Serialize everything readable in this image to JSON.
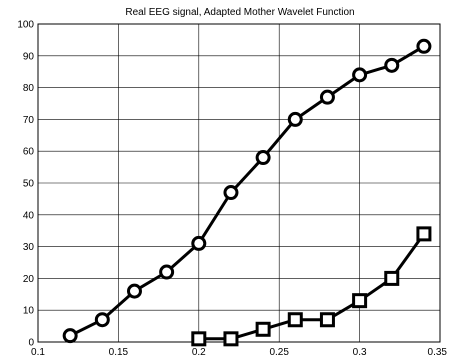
{
  "chart_data": {
    "type": "line",
    "title": "Real EEG signal, Adapted Mother Wavelet Function",
    "xlabel": "",
    "ylabel": "",
    "xlim": [
      0.1,
      0.35
    ],
    "ylim": [
      0,
      100
    ],
    "grid": true,
    "legend": "none",
    "x_ticks": [
      {
        "value": 0.1,
        "label": "0.1"
      },
      {
        "value": 0.15,
        "label": "0.15"
      },
      {
        "value": 0.2,
        "label": "0.2"
      },
      {
        "value": 0.25,
        "label": "0.25"
      },
      {
        "value": 0.3,
        "label": "0.3"
      },
      {
        "value": 0.35,
        "label": "0.35"
      }
    ],
    "y_ticks": [
      {
        "value": 0,
        "label": "0"
      },
      {
        "value": 10,
        "label": "10"
      },
      {
        "value": 20,
        "label": "20"
      },
      {
        "value": 30,
        "label": "30"
      },
      {
        "value": 40,
        "label": "40"
      },
      {
        "value": 50,
        "label": "50"
      },
      {
        "value": 60,
        "label": "60"
      },
      {
        "value": 70,
        "label": "70"
      },
      {
        "value": 80,
        "label": "80"
      },
      {
        "value": 90,
        "label": "90"
      },
      {
        "value": 100,
        "label": "100"
      }
    ],
    "series": [
      {
        "marker": "circle",
        "color": "#000000",
        "x": [
          0.12,
          0.14,
          0.16,
          0.18,
          0.2,
          0.22,
          0.24,
          0.26,
          0.28,
          0.3,
          0.32,
          0.34
        ],
        "y": [
          2,
          7,
          16,
          22,
          31,
          47,
          58,
          70,
          77,
          84,
          87,
          93
        ]
      },
      {
        "marker": "square",
        "color": "#000000",
        "x": [
          0.2,
          0.22,
          0.24,
          0.26,
          0.28,
          0.3,
          0.32,
          0.34
        ],
        "y": [
          1,
          1,
          4,
          7,
          7,
          13,
          20,
          34
        ]
      }
    ]
  }
}
